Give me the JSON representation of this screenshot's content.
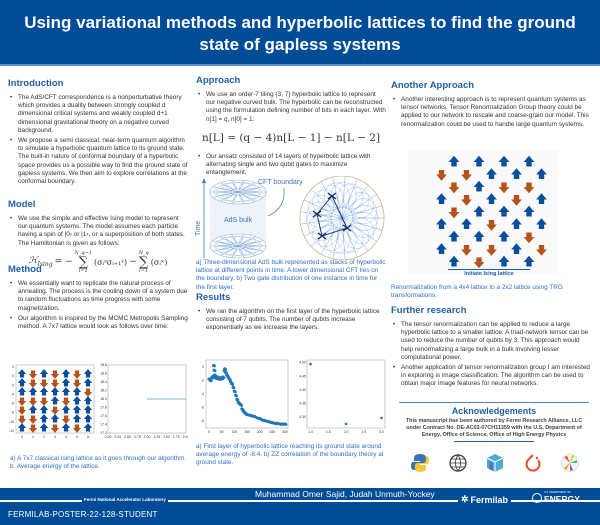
{
  "title": "Using variational methods and hyperbolic lattices to find the ground state of gapless systems",
  "introduction": {
    "heading": "Introduction",
    "bullets": [
      "The AdS/CFT correspondence is a nonperturbative theory which provides a duality between strongly coupled d dimensional critical systems and weakly coupled d+1 dimensional gravitational theory on a negative curved background.",
      "We propose a semi classical, near-term quantum algorithm to simulate a hyperbolic quantum lattice to its ground state. The built-in nature of conformal boundary of a hyperbolic space provides us a possible way to find the ground state of gapless systems. We then aim to explore correlations at the conformal boundary."
    ]
  },
  "model": {
    "heading": "Model",
    "bullets": [
      "We use the simple and effective Ising model to represent our quantum systems. The model assumes each particle having a spin of |0› or |1›, or a superposition of both states. The Hamiltonian is given as follows:"
    ],
    "hamiltonian": {
      "lhs": "ℋ",
      "lhs_sub": "Ising",
      "eq": "= −",
      "sum1_top": "N_q−1",
      "sum_bottom": "i=1",
      "term1": "(σᵢᶻσᵢ₊₁ᶻ)",
      "minus": "−",
      "sum2_top": "N_q",
      "term2": "(σᵢˣ)",
      "sigma": "∑"
    }
  },
  "method": {
    "heading": "Method",
    "bullets": [
      "We essentially want to replicate the natural process of annealing. The process is the cooling down of a system due to random fluctuations as time progress with some magnetization.",
      "Our algorithm is inspired by the MCMC Metropolis Sampling method. A 7x7 lattice would look as follows over time:"
    ],
    "caption": "a) A 7x7 classical Ising lattice as it goes through our algorithm. b. Average energy of the lattice."
  },
  "approach": {
    "heading": "Approach",
    "bullets": [
      "We use an order-7 tiling {3, 7} hyperbolic lattice to represent our negative curved bulk. The hyperbolic can be reconstructed using the formulation defining number of bits in each layer. With n[1] = q, n[0] = 1:",
      "Our ansatz consisted of 14 layers of hyperbolic lattice with alternating single and two qubit gates to maximize entanglement."
    ],
    "equation": "n[L] = (q − 4)n[L − 1]  − n[L − 2]",
    "figure_labels": {
      "cft": "CFT boundary",
      "ads": "AdS bulk",
      "time": "Time"
    },
    "caption": "a) Three-dimensional AdS bulk represented as stacks of hyperbolic lattice at different points in time. A lower dimensional CFT lies on the boundary. b) Two gate distribution of one instance in time for the first layer."
  },
  "results": {
    "heading": "Results",
    "bullets": [
      "We ran the algorithm on the first layer of the hyperbolic lattice consisting of 7 qubits. The number of qubits increase exponentially as we increase the layers."
    ],
    "caption": "a) First layer of hyperbolic lattice reaching its ground state around average energy of -8.4. b) ZZ correlation of the boundary theory at ground state."
  },
  "another_approach": {
    "heading": "Another Approach",
    "bullets": [
      "Another interesting approach is to represent quantum systems as tensor networks. Tensor Renormalization Group theory could be applied to our network to rescale and coarse-grain our model. This renormalization could be used to handle large quantum systems."
    ],
    "figure_label": "Initiate Ising lattice",
    "caption": "Renormalization from a 4x4 lattice to a 2x2 lattice using TRG transformations."
  },
  "further_research": {
    "heading": "Further research",
    "bullets": [
      "The tensor renormalization can be applied to reduce a large hyperbolic lattice to a smaller lattice. A triad-network tensor can be used to reduce the number of qubits by 3. This approach would help renormalizing a large bulk in a bulk involving lesser computational power.",
      "Another application of tensor renormalization group I am interested in exploring is image classification. The algorithm can be used to obtain major image features for neural networks."
    ]
  },
  "acknowledgements": {
    "heading": "Acknowledgements",
    "text": "This manuscript has been authored by Fermi Research Alliance, LLC under Contract No. DE-AC02-07CH11359 with the U.S. Department of Energy, Office of Science, Office of High Energy Physics",
    "logos": [
      "python-logo",
      "globe-logo",
      "numpy-logo",
      "pytorch-logo",
      "radar-logo"
    ]
  },
  "footer": {
    "authors": "Muhammad Omer Sajid, Judah Unmuth-Yockey",
    "lab": "Fermi National Accelerator Laboratory",
    "poster_id": "FERMILAB-POSTER-22-128-STUDENT",
    "fermilab": "Fermilab",
    "doe_small": "U.S. DEPARTMENT OF",
    "doe": "ENERGY"
  },
  "colors": {
    "brand_blue": "#004c97",
    "heading": "#1f5fa8",
    "spin_up": "#0b4f9c",
    "spin_down": "#b5531c",
    "plot": "#1f77b4"
  },
  "chart_data": [
    {
      "type": "heatmap",
      "grid": [
        "UDUDUDU",
        "UDDDUDU",
        "UUUUUUD",
        "DDDUDUU",
        "DUUDUUU",
        "DDUUDUU",
        "UDUDUDU"
      ],
      "xticks": [
        "0",
        "1",
        "2",
        "3",
        "4",
        "5",
        "6"
      ],
      "yticks": [
        "2",
        "0",
        "-2",
        "-4",
        "-6",
        "-8",
        "-10",
        "-12"
      ]
    },
    {
      "type": "line",
      "x": [
        1.0,
        2.0
      ],
      "y": [
        18.0,
        18.0
      ],
      "xlim": [
        0,
        2
      ],
      "ylim": [
        17.2,
        18.8
      ],
      "xticks": [
        "0.00",
        "0.25",
        "0.50",
        "0.75",
        "1.00",
        "1.25",
        "1.50",
        "1.75",
        "2.00"
      ],
      "yticks": [
        "18.8",
        "18.6",
        "18.4",
        "18.2",
        "18.0",
        "17.8",
        "17.6",
        "17.4",
        "17.2"
      ]
    },
    {
      "type": "scatter",
      "x": [
        0,
        5,
        10,
        15,
        18,
        20,
        22,
        25,
        30,
        35,
        40,
        45,
        50,
        55,
        60,
        62,
        65,
        70,
        75,
        80,
        85,
        90,
        95,
        100,
        105,
        110,
        115,
        120,
        125,
        130,
        135,
        140,
        145,
        150,
        160,
        170,
        180,
        190,
        200,
        210,
        220,
        230,
        240,
        250,
        260,
        270,
        280,
        290,
        300
      ],
      "y": [
        -1.8,
        -2.0,
        -1.6,
        -1.4,
        0.2,
        -0.5,
        -1.2,
        -1.6,
        -1.7,
        -1.5,
        -1.8,
        -1.6,
        -1.7,
        -1.5,
        -0.6,
        -0.3,
        -0.8,
        -1.2,
        -1.5,
        -1.8,
        -2.2,
        -2.5,
        -3.0,
        -3.6,
        -4.2,
        -4.8,
        -5.2,
        -5.4,
        -5.6,
        -6.2,
        -6.5,
        -6.7,
        -6.9,
        -7.0,
        -7.1,
        -7.2,
        -7.3,
        -7.5,
        -7.6,
        -7.8,
        -7.9,
        -8.0,
        -8.1,
        -8.2,
        -8.3,
        -8.3,
        -8.4,
        -8.4,
        -8.4
      ],
      "xlim": [
        0,
        300
      ],
      "ylim": [
        -9,
        1
      ],
      "xticks": [
        "0",
        "50",
        "100",
        "150",
        "200",
        "250",
        "300"
      ],
      "yticks": [
        "0",
        "-2",
        "-4",
        "-6",
        "-8"
      ]
    },
    {
      "type": "scatter",
      "x": [
        1.0,
        2.0,
        3.0
      ],
      "y": [
        4.495,
        4.275,
        4.297
      ],
      "xlim": [
        0.9,
        3.1
      ],
      "ylim": [
        4.26,
        4.51
      ],
      "xticks": [
        "1.0",
        "1.5",
        "2.0",
        "2.5",
        "3.0"
      ],
      "yticks": [
        "4.50",
        "4.45",
        "4.40",
        "4.35",
        "4.30"
      ]
    },
    {
      "type": "heatmap",
      "rows": [
        "UUUU",
        "DDUUU",
        "DUDD",
        "UDUDU",
        "DUUU",
        "UUDUU",
        "UUUD",
        "UDDUD",
        "UDUU"
      ]
    }
  ]
}
